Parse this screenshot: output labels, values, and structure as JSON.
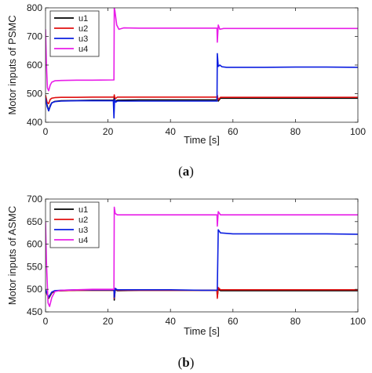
{
  "chart_data": [
    {
      "type": "line",
      "ylabel": "Motor inputs of PSMC",
      "xlabel": "Time [s]",
      "caption_open": "(",
      "caption_letter": "a",
      "caption_close": ")",
      "xlim": [
        0,
        100
      ],
      "ylim": [
        400,
        800
      ],
      "xticks": [
        "0",
        "20",
        "40",
        "60",
        "80",
        "100"
      ],
      "yticks": [
        "400",
        "500",
        "600",
        "700",
        "800"
      ],
      "legend_position": "top-left",
      "series": [
        {
          "name": "u1",
          "color": "#000000",
          "x": [
            0,
            0.5,
            1,
            1.5,
            2,
            3,
            5,
            10,
            15,
            21.9,
            22,
            22.3,
            23,
            30,
            40,
            50,
            54.9,
            55,
            55.3,
            56,
            60,
            70,
            80,
            90,
            100
          ],
          "y": [
            490,
            460,
            440,
            458,
            468,
            473,
            475,
            476,
            477,
            477,
            490,
            472,
            477,
            478,
            478,
            478,
            478,
            490,
            474,
            484,
            484,
            484,
            484,
            484,
            484
          ]
        },
        {
          "name": "u2",
          "color": "#e01010",
          "x": [
            0,
            0.5,
            1,
            1.5,
            2,
            3,
            5,
            10,
            15,
            21.9,
            22,
            22.3,
            23,
            30,
            40,
            50,
            54.9,
            55,
            55.3,
            56,
            60,
            70,
            80,
            90,
            100
          ],
          "y": [
            495,
            470,
            465,
            480,
            484,
            486,
            487,
            487,
            488,
            488,
            496,
            482,
            488,
            488,
            488,
            488,
            488,
            494,
            478,
            487,
            487,
            487,
            487,
            487,
            487
          ]
        },
        {
          "name": "u3",
          "color": "#0b1ee0",
          "x": [
            0,
            0.5,
            1,
            1.5,
            2,
            3,
            5,
            10,
            15,
            21.7,
            21.9,
            22.1,
            22.5,
            23,
            30,
            40,
            50,
            54.9,
            55,
            55.3,
            55.8,
            56.5,
            58,
            60,
            70,
            80,
            90,
            100
          ],
          "y": [
            485,
            455,
            440,
            455,
            468,
            472,
            474,
            475,
            475,
            475,
            415,
            480,
            470,
            474,
            474,
            474,
            474,
            474,
            640,
            595,
            600,
            594,
            592,
            592,
            592,
            593,
            593,
            592
          ]
        },
        {
          "name": "u4",
          "color": "#e81ee8",
          "x": [
            0,
            0.3,
            0.6,
            1,
            1.5,
            2,
            3,
            5,
            10,
            15,
            21.9,
            22,
            22.2,
            22.8,
            23.5,
            25,
            30,
            40,
            50,
            54.9,
            55,
            55.3,
            55.8,
            57,
            60,
            70,
            80,
            90,
            100
          ],
          "y": [
            725,
            600,
            520,
            510,
            530,
            540,
            545,
            546,
            547,
            547,
            548,
            800,
            790,
            740,
            725,
            730,
            729,
            729,
            729,
            729,
            680,
            740,
            725,
            728,
            728,
            728,
            728,
            728,
            728
          ]
        }
      ]
    },
    {
      "type": "line",
      "ylabel": "Motor inputs of ASMC",
      "xlabel": "Time [s]",
      "caption_open": "(",
      "caption_letter": "b",
      "caption_close": ")",
      "xlim": [
        0,
        100
      ],
      "ylim": [
        450,
        700
      ],
      "xticks": [
        "0",
        "20",
        "40",
        "60",
        "80",
        "100"
      ],
      "yticks": [
        "450",
        "500",
        "550",
        "600",
        "650",
        "700"
      ],
      "legend_position": "top-left",
      "series": [
        {
          "name": "u1",
          "color": "#000000",
          "x": [
            0,
            0.5,
            1,
            2,
            3,
            5,
            10,
            15,
            21.9,
            22,
            22.3,
            23,
            30,
            40,
            50,
            54.9,
            55,
            55.3,
            56,
            60,
            70,
            80,
            90,
            100
          ],
          "y": [
            500,
            490,
            480,
            492,
            496,
            497,
            498,
            498,
            498,
            476,
            500,
            497,
            498,
            498,
            498,
            498,
            484,
            500,
            497,
            497,
            497,
            497,
            497,
            497
          ]
        },
        {
          "name": "u2",
          "color": "#e01010",
          "x": [
            0,
            0.5,
            1,
            2,
            3,
            5,
            10,
            15,
            21.9,
            22,
            22.3,
            23,
            30,
            40,
            50,
            54.9,
            55,
            55.3,
            56,
            60,
            70,
            80,
            90,
            100
          ],
          "y": [
            500,
            488,
            482,
            493,
            496,
            497,
            498,
            498,
            498,
            480,
            502,
            498,
            498,
            498,
            498,
            498,
            480,
            504,
            499,
            499,
            499,
            499,
            499,
            499
          ]
        },
        {
          "name": "u3",
          "color": "#0b1ee0",
          "x": [
            0,
            0.5,
            1,
            2,
            3,
            5,
            10,
            15,
            21.9,
            22,
            22.3,
            23,
            30,
            40,
            50,
            54.9,
            55,
            55.3,
            56,
            60,
            70,
            80,
            90,
            100
          ],
          "y": [
            500,
            490,
            483,
            494,
            497,
            498,
            499,
            499,
            499,
            482,
            502,
            499,
            499,
            499,
            498,
            498,
            500,
            632,
            625,
            623,
            623,
            623,
            623,
            622
          ]
        },
        {
          "name": "u4",
          "color": "#e81ee8",
          "x": [
            0,
            0.3,
            0.8,
            1.3,
            2,
            3,
            5,
            10,
            15,
            21.9,
            22,
            22.3,
            23,
            25,
            30,
            40,
            50,
            54.9,
            55,
            55.3,
            56,
            60,
            70,
            80,
            90,
            100
          ],
          "y": [
            650,
            560,
            470,
            462,
            482,
            495,
            498,
            499,
            500,
            500,
            682,
            668,
            665,
            665,
            665,
            665,
            665,
            665,
            640,
            672,
            665,
            665,
            665,
            665,
            665,
            665
          ]
        }
      ]
    }
  ]
}
